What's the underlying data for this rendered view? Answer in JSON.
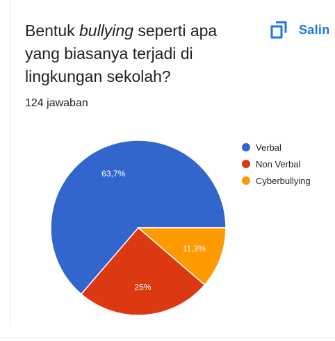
{
  "question": {
    "before": "Bentuk ",
    "emphasis": "bullying",
    "after": " seperti apa yang biasanya terjadi di lingkungan sekolah?"
  },
  "copy_button": {
    "label": "Salin",
    "icon": "copy-icon"
  },
  "response_count": "124 jawaban",
  "colors": {
    "accent": "#1a73e8"
  },
  "chart_data": {
    "type": "pie",
    "title": "",
    "legend_position": "top-right",
    "series": [
      {
        "name": "Verbal",
        "value": 63.7,
        "label": "63,7%",
        "color": "#3366cc"
      },
      {
        "name": "Non Verbal",
        "value": 25,
        "label": "25%",
        "color": "#dc3912"
      },
      {
        "name": "Cyberbullying",
        "value": 11.3,
        "label": "11,3%",
        "color": "#ff9900"
      }
    ]
  }
}
